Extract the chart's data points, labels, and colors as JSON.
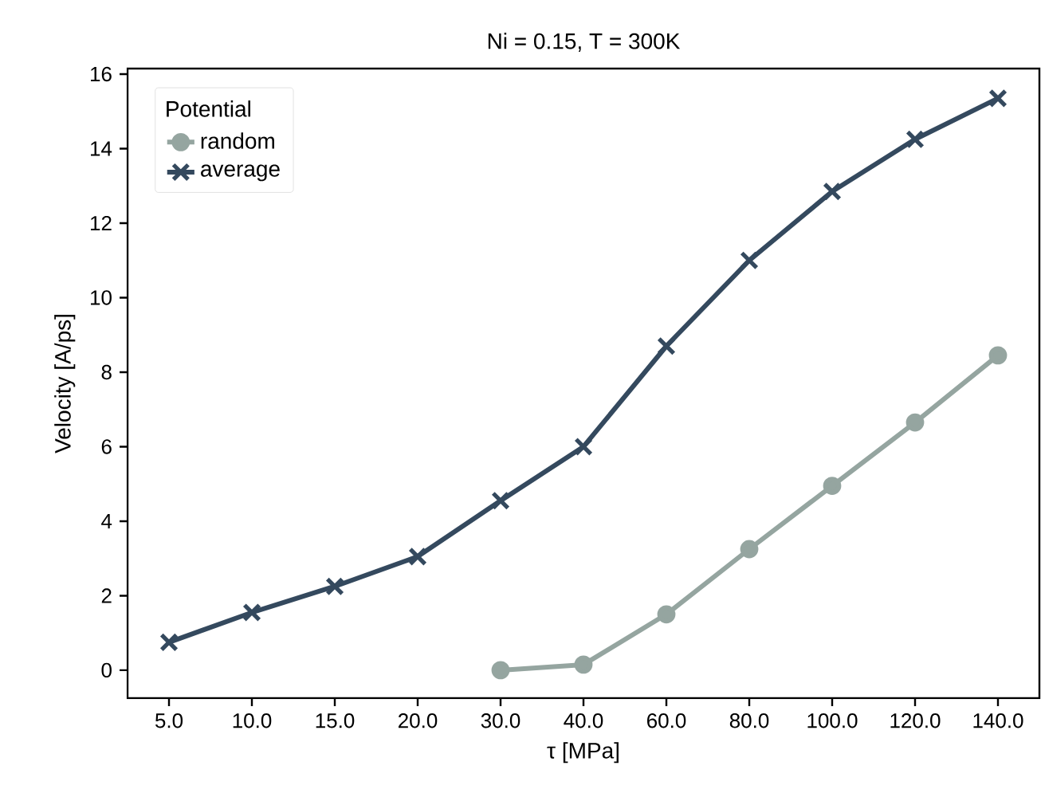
{
  "chart_data": {
    "type": "line",
    "title": "Ni = 0.15, T = 300K",
    "xlabel": "τ [MPa]",
    "ylabel": "Velocity [A/ps]",
    "legend_title": "Potential",
    "legend": "top left",
    "categories": [
      "5.0",
      "10.0",
      "15.0",
      "20.0",
      "30.0",
      "40.0",
      "60.0",
      "80.0",
      "100.0",
      "120.0",
      "140.0"
    ],
    "ylim": [
      -0.75,
      16.15
    ],
    "yticks": [
      0,
      2,
      4,
      6,
      8,
      10,
      12,
      14,
      16
    ],
    "series": [
      {
        "name": "random",
        "color": "#95a5a0",
        "marker": "circle",
        "values": [
          null,
          null,
          null,
          null,
          0.0,
          0.15,
          1.5,
          3.25,
          4.95,
          6.65,
          8.45
        ]
      },
      {
        "name": "average",
        "color": "#34495e",
        "marker": "cross",
        "values": [
          0.75,
          1.55,
          2.25,
          3.05,
          4.55,
          6.0,
          8.7,
          11.0,
          12.85,
          14.25,
          15.35
        ]
      }
    ]
  }
}
